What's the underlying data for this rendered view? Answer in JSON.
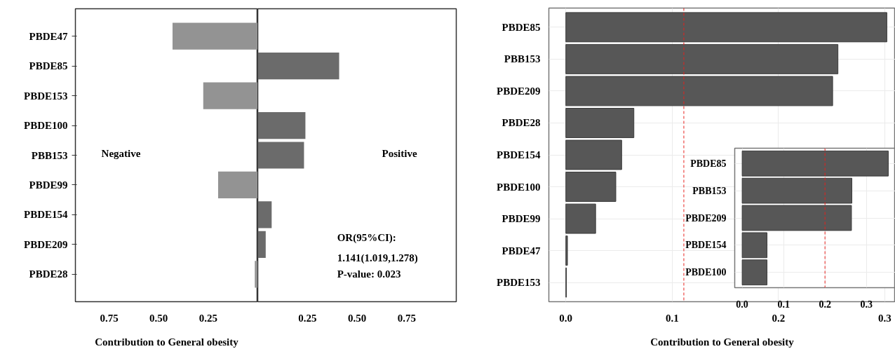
{
  "chart_data": [
    {
      "type": "bar",
      "orientation": "horizontal",
      "xlabel": "Contribution to General obesity",
      "categories": [
        "PBDE47",
        "PBDE85",
        "PBDE153",
        "PBDE100",
        "PBB153",
        "PBDE99",
        "PBDE154",
        "PBDE209",
        "PBDE28"
      ],
      "values": [
        0.43,
        null,
        0.275,
        null,
        null,
        0.2,
        null,
        null,
        0.015
      ],
      "color": "#939393",
      "xlim": [
        0.92,
        0
      ],
      "xticks": [
        {
          "value": 0.75,
          "label": "0.75"
        },
        {
          "value": 0.5,
          "label": "0.50"
        },
        {
          "value": 0.25,
          "label": "0.25"
        }
      ],
      "annotations": [
        "Negative"
      ]
    },
    {
      "type": "bar",
      "orientation": "horizontal",
      "categories": [
        null,
        null,
        null,
        null,
        null,
        null,
        null,
        null,
        null
      ],
      "values": [
        null,
        0.41,
        null,
        0.24,
        0.233,
        null,
        0.07,
        0.04,
        null
      ],
      "color": "#6b6b6b",
      "xlim": [
        0,
        1.0
      ],
      "xticks": [
        {
          "value": 0.25,
          "label": "0.25"
        },
        {
          "value": 0.5,
          "label": "0.50"
        },
        {
          "value": 0.75,
          "label": "0.75"
        }
      ],
      "tick_labels": "x",
      "annotations": [
        "Positive",
        "OR(95%CI):",
        "1.141(1.019,1.278)",
        "P-value: 0.023"
      ]
    },
    {
      "type": "bar",
      "orientation": "horizontal",
      "xlabel": "Contribution to General obesity",
      "categories": [
        "PBDE85",
        "PBB153",
        "PBDE209",
        "PBDE28",
        "PBDE154",
        "PBDE100",
        "PBDE99",
        "PBDE47",
        "PBDE153"
      ],
      "values": [
        0.302,
        0.256,
        0.251,
        0.064,
        0.0525,
        0.047,
        0.028,
        0.0015,
        0.0005
      ],
      "color": "#575757",
      "xlim": [
        -0.016,
        0.31
      ],
      "xticks": [
        {
          "value": 0,
          "label": "0.0"
        },
        {
          "value": 0.1,
          "label": "0.1"
        },
        {
          "value": 0.2,
          "label": "0.2"
        },
        {
          "value": 0.3,
          "label": "0.3"
        }
      ],
      "grid": true,
      "ref_lines": [
        {
          "axis": "x",
          "value": 0.111,
          "color": "#e8211d",
          "line_style": "dashed"
        }
      ]
    },
    {
      "type": "bar",
      "orientation": "horizontal",
      "categories": [
        "PBDE85",
        "PBB153",
        "PBDE209",
        "PBDE154",
        "PBDE100"
      ],
      "values": [
        0.353,
        0.265,
        0.264,
        0.06,
        0.06
      ],
      "color": "#575757",
      "xlim": [
        -0.018,
        0.37
      ],
      "xticks": [
        {
          "value": 0,
          "label": "0.0"
        },
        {
          "value": 0.1,
          "label": "0.1"
        },
        {
          "value": 0.2,
          "label": "0.2"
        },
        {
          "value": 0.3,
          "label": "0.3"
        }
      ],
      "grid": true,
      "ref_lines": [
        {
          "axis": "x",
          "value": 0.2,
          "color": "#e8211d",
          "line_style": "dashed"
        }
      ]
    }
  ]
}
